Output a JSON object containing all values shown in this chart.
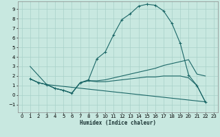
{
  "xlabel": "Humidex (Indice chaleur)",
  "xlim": [
    -0.5,
    23.5
  ],
  "ylim": [
    -1.8,
    9.8
  ],
  "yticks": [
    -1,
    0,
    1,
    2,
    3,
    4,
    5,
    6,
    7,
    8,
    9
  ],
  "xticks": [
    0,
    1,
    2,
    3,
    4,
    5,
    6,
    7,
    8,
    9,
    10,
    11,
    12,
    13,
    14,
    15,
    16,
    17,
    18,
    19,
    20,
    21,
    22,
    23
  ],
  "bg_color": "#c8e8e0",
  "line_color": "#1a6666",
  "grid_color": "#a8d0c8",
  "lines": [
    {
      "x": [
        1,
        2,
        3,
        4,
        5,
        6,
        7,
        8,
        9,
        10,
        11,
        12,
        13,
        14,
        15,
        16,
        17,
        18,
        19,
        20,
        21,
        22
      ],
      "y": [
        1.7,
        1.3,
        1.1,
        0.7,
        0.5,
        0.2,
        1.3,
        1.6,
        3.8,
        4.5,
        6.3,
        7.9,
        8.5,
        9.3,
        9.5,
        9.4,
        8.8,
        7.5,
        5.4,
        2.1,
        1.0,
        -0.7
      ],
      "marker": true
    },
    {
      "x": [
        1,
        2,
        3,
        4,
        5,
        6,
        7,
        8,
        9,
        10,
        11,
        12,
        13,
        14,
        15,
        16,
        17,
        18,
        19,
        20,
        21,
        22
      ],
      "y": [
        1.7,
        1.3,
        1.1,
        0.7,
        0.5,
        0.2,
        1.3,
        1.5,
        1.5,
        1.6,
        1.8,
        2.0,
        2.2,
        2.4,
        2.6,
        2.8,
        3.1,
        3.3,
        3.5,
        3.7,
        2.2,
        2.0
      ],
      "marker": false
    },
    {
      "x": [
        1,
        2,
        3,
        4,
        5,
        6,
        7,
        8,
        9,
        10,
        11,
        12,
        13,
        14,
        15,
        16,
        17,
        18,
        19,
        20,
        21,
        22
      ],
      "y": [
        1.7,
        1.3,
        1.1,
        0.7,
        0.5,
        0.2,
        1.3,
        1.5,
        1.4,
        1.4,
        1.5,
        1.6,
        1.7,
        1.8,
        1.9,
        1.9,
        2.0,
        2.0,
        2.0,
        1.8,
        1.0,
        -0.7
      ],
      "marker": false
    },
    {
      "x": [
        1,
        3,
        22
      ],
      "y": [
        3.0,
        1.1,
        -0.7
      ],
      "marker": false
    }
  ]
}
